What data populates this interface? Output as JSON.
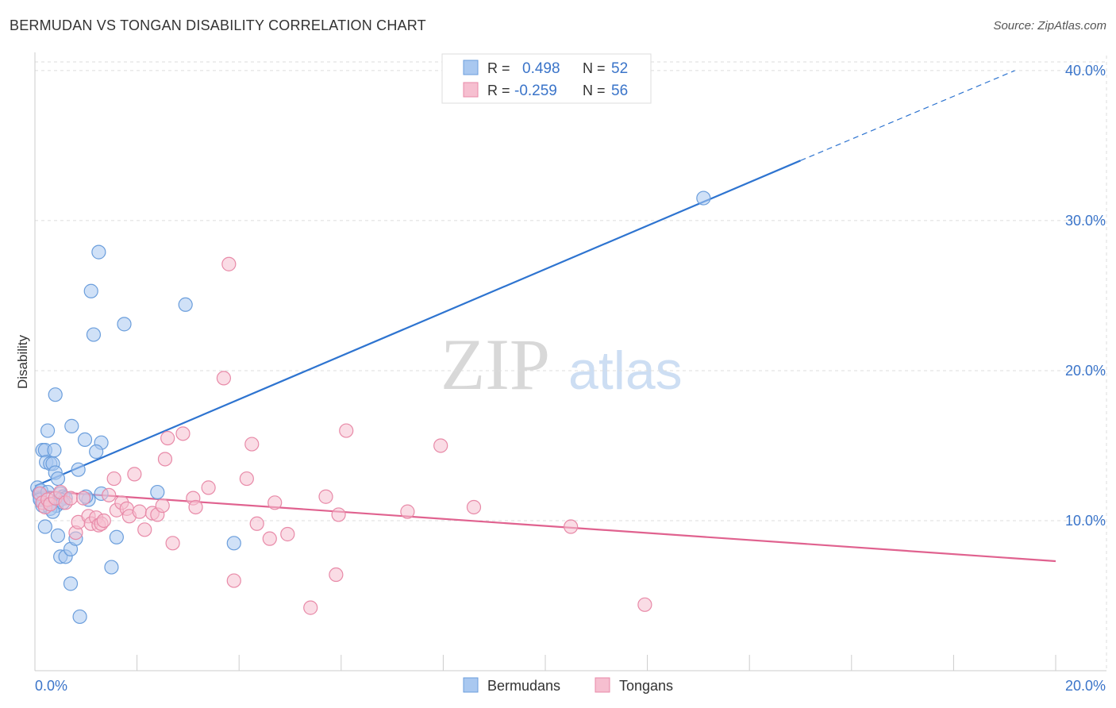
{
  "title": "BERMUDAN VS TONGAN DISABILITY CORRELATION CHART",
  "source": "Source: ZipAtlas.com",
  "watermark": {
    "zip": "ZIP",
    "atlas": "atlas"
  },
  "legend_top": [
    {
      "r_label": "R = ",
      "r_value": "0.498",
      "n_label": "N = ",
      "n_value": "52"
    },
    {
      "r_label": "R = ",
      "r_value": "-0.259",
      "n_label": "N = ",
      "n_value": "56"
    }
  ],
  "legend_bottom": [
    "Bermudans",
    "Tongans"
  ],
  "colors": {
    "bermudan_fill": "#a9c8f0",
    "bermudan_stroke": "#6b9edc",
    "bermudan_line": "#2e74d0",
    "tongan_fill": "#f6bfd0",
    "tongan_stroke": "#e88aa8",
    "tongan_line": "#e0628f",
    "value_text": "#3a74c9",
    "grid": "#dddddd"
  },
  "chart_data": {
    "type": "scatter",
    "ylabel": "Disability",
    "xlim": [
      0,
      20
    ],
    "ylim": [
      0,
      41
    ],
    "x_tick_labels": [
      "0.0%",
      "20.0%"
    ],
    "y_ticks": [
      10,
      20,
      30,
      40
    ],
    "y_tick_labels": [
      "10.0%",
      "20.0%",
      "30.0%",
      "40.0%"
    ],
    "series": [
      {
        "name": "Bermudans",
        "points": [
          [
            0.05,
            12.2
          ],
          [
            0.08,
            11.8
          ],
          [
            0.1,
            11.5
          ],
          [
            0.12,
            12.0
          ],
          [
            0.15,
            14.7
          ],
          [
            0.2,
            14.7
          ],
          [
            0.22,
            13.9
          ],
          [
            0.25,
            16.0
          ],
          [
            0.3,
            11.1
          ],
          [
            0.3,
            13.8
          ],
          [
            0.35,
            13.8
          ],
          [
            0.38,
            14.7
          ],
          [
            0.4,
            13.2
          ],
          [
            0.42,
            11.0
          ],
          [
            0.45,
            12.8
          ],
          [
            0.5,
            11.8
          ],
          [
            0.55,
            11.6
          ],
          [
            0.6,
            11.5
          ],
          [
            0.2,
            9.6
          ],
          [
            0.45,
            9.0
          ],
          [
            0.5,
            7.6
          ],
          [
            0.6,
            7.6
          ],
          [
            0.7,
            8.1
          ],
          [
            0.8,
            8.8
          ],
          [
            0.7,
            5.8
          ],
          [
            0.88,
            3.6
          ],
          [
            0.72,
            16.3
          ],
          [
            0.98,
            15.4
          ],
          [
            1.05,
            11.4
          ],
          [
            1.1,
            25.3
          ],
          [
            1.15,
            22.4
          ],
          [
            1.25,
            27.9
          ],
          [
            1.3,
            15.2
          ],
          [
            1.3,
            11.8
          ],
          [
            1.2,
            14.6
          ],
          [
            1.5,
            6.9
          ],
          [
            1.6,
            8.9
          ],
          [
            1.75,
            23.1
          ],
          [
            0.4,
            18.4
          ],
          [
            0.85,
            13.4
          ],
          [
            1.0,
            11.6
          ],
          [
            2.4,
            11.9
          ],
          [
            2.95,
            24.4
          ],
          [
            3.9,
            8.5
          ],
          [
            13.1,
            31.5
          ],
          [
            0.15,
            11.0
          ],
          [
            0.3,
            10.8
          ],
          [
            0.35,
            10.6
          ],
          [
            0.5,
            11.4
          ],
          [
            0.55,
            11.2
          ],
          [
            0.1,
            11.4
          ],
          [
            0.25,
            11.9
          ]
        ]
      },
      {
        "name": "Tongans",
        "points": [
          [
            0.1,
            11.8
          ],
          [
            0.15,
            11.2
          ],
          [
            0.2,
            10.9
          ],
          [
            0.25,
            11.4
          ],
          [
            0.3,
            11.1
          ],
          [
            0.4,
            11.5
          ],
          [
            0.5,
            11.9
          ],
          [
            0.6,
            11.2
          ],
          [
            0.7,
            11.5
          ],
          [
            0.8,
            9.2
          ],
          [
            0.85,
            9.9
          ],
          [
            0.95,
            11.5
          ],
          [
            1.05,
            10.3
          ],
          [
            1.1,
            9.8
          ],
          [
            1.2,
            10.2
          ],
          [
            1.25,
            9.7
          ],
          [
            1.3,
            9.8
          ],
          [
            1.35,
            10.0
          ],
          [
            1.45,
            11.7
          ],
          [
            1.55,
            12.8
          ],
          [
            1.6,
            10.7
          ],
          [
            1.7,
            11.2
          ],
          [
            1.8,
            10.8
          ],
          [
            1.85,
            10.3
          ],
          [
            1.95,
            13.1
          ],
          [
            2.05,
            10.6
          ],
          [
            2.15,
            9.4
          ],
          [
            2.3,
            10.5
          ],
          [
            2.4,
            10.4
          ],
          [
            2.5,
            11.0
          ],
          [
            2.55,
            14.1
          ],
          [
            2.6,
            15.5
          ],
          [
            2.7,
            8.5
          ],
          [
            2.9,
            15.8
          ],
          [
            3.1,
            11.5
          ],
          [
            3.15,
            10.9
          ],
          [
            3.4,
            12.2
          ],
          [
            3.7,
            19.5
          ],
          [
            3.8,
            27.1
          ],
          [
            3.9,
            6.0
          ],
          [
            4.15,
            12.8
          ],
          [
            4.25,
            15.1
          ],
          [
            4.35,
            9.8
          ],
          [
            4.6,
            8.8
          ],
          [
            4.7,
            11.2
          ],
          [
            4.95,
            9.1
          ],
          [
            5.4,
            4.2
          ],
          [
            5.7,
            11.6
          ],
          [
            5.9,
            6.4
          ],
          [
            5.95,
            10.4
          ],
          [
            6.1,
            16.0
          ],
          [
            7.3,
            10.6
          ],
          [
            7.95,
            15.0
          ],
          [
            8.6,
            10.9
          ],
          [
            10.5,
            9.6
          ],
          [
            11.95,
            4.4
          ]
        ]
      }
    ],
    "trendlines": [
      {
        "series": "Bermudans",
        "x0": 0,
        "y0": 12.3,
        "x1": 15.0,
        "y1": 34.0,
        "dash_to_x": 19.2,
        "dash_to_y": 40.0
      },
      {
        "series": "Tongans",
        "x0": 0,
        "y0": 12.0,
        "x1": 20.0,
        "y1": 7.3
      }
    ]
  }
}
